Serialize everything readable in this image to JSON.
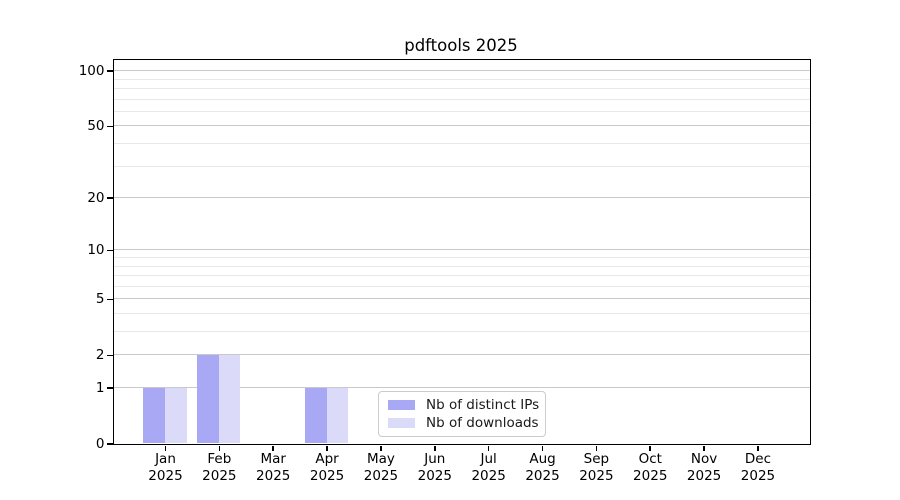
{
  "chart_data": {
    "type": "bar",
    "title": "pdftools 2025",
    "categories": [
      "Jan",
      "Feb",
      "Mar",
      "Apr",
      "May",
      "Jun",
      "Jul",
      "Aug",
      "Sep",
      "Oct",
      "Nov",
      "Dec"
    ],
    "x_year_label": "2025",
    "series": [
      {
        "name": "Nb of distinct IPs",
        "color": "#a8a8f4",
        "values": [
          1,
          2,
          0,
          1,
          0,
          0,
          0,
          0,
          0,
          0,
          0,
          0
        ]
      },
      {
        "name": "Nb of downloads",
        "color": "#dbdbf9",
        "values": [
          1,
          2,
          0,
          1,
          0,
          0,
          0,
          0,
          0,
          0,
          0,
          0
        ]
      }
    ],
    "xlabel": "",
    "ylabel": "",
    "yscale": "log1p",
    "ylim": [
      0,
      115
    ],
    "yticks": [
      0,
      1,
      2,
      5,
      10,
      20,
      50,
      100
    ],
    "yticks_minor": [
      3,
      4,
      6,
      7,
      8,
      9,
      30,
      40,
      60,
      70,
      80,
      90
    ],
    "grid": true,
    "legend_position": "lower center"
  },
  "colors": {
    "background": "#ffffff",
    "axis": "#000000",
    "grid_major": "#c9c9c9",
    "grid_minor": "#e8e8e8",
    "legend_border": "#cccccc",
    "bar_distinct_ips": "#a8a8f4",
    "bar_downloads": "#dbdbf9"
  }
}
